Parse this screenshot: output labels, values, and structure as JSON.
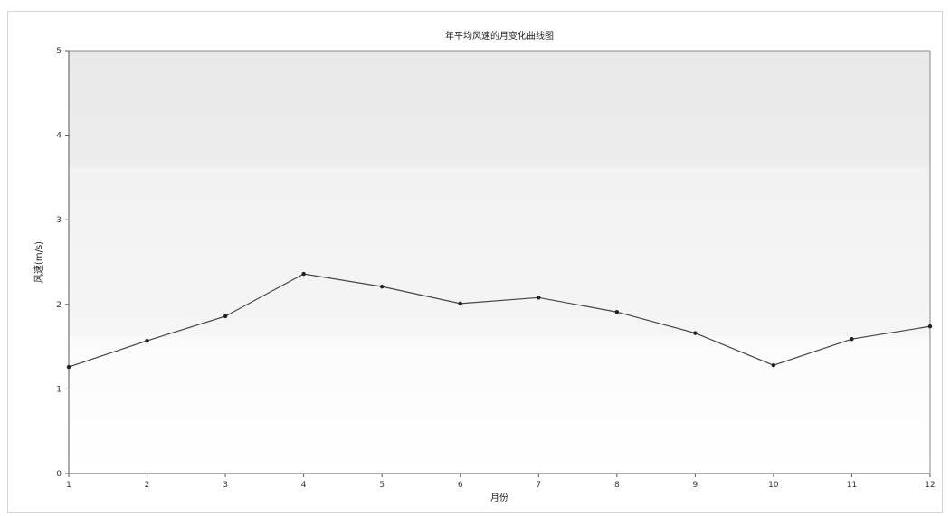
{
  "chart_data": {
    "type": "line",
    "title": "年平均风速的月变化曲线图",
    "xlabel": "月份",
    "ylabel": "风速(m/s)",
    "x": [
      1,
      2,
      3,
      4,
      5,
      6,
      7,
      8,
      9,
      10,
      11,
      12
    ],
    "xlim": [
      1,
      12
    ],
    "ylim": [
      0,
      5
    ],
    "yticks": [
      0,
      1,
      2,
      3,
      4,
      5
    ],
    "grid": false,
    "series": [
      {
        "values": [
          1.26,
          1.57,
          1.86,
          2.36,
          2.21,
          2.01,
          2.08,
          1.91,
          1.66,
          1.28,
          1.59,
          1.74
        ],
        "color": "#444444",
        "marker": "circle"
      }
    ]
  }
}
